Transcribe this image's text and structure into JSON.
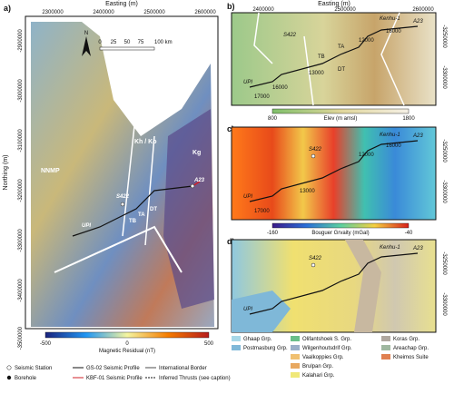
{
  "panel_a": {
    "label": "a)",
    "x_axis_title": "Easting (m)",
    "x_ticks": [
      "2300000",
      "2400000",
      "2500000",
      "2600000"
    ],
    "y_axis_title": "Northing (m)",
    "y_ticks": [
      "-2900000",
      "-3000000",
      "-3100000",
      "-3200000",
      "-3300000",
      "-3400000",
      "-3500000"
    ],
    "north": "N",
    "scale_ticks": [
      "0",
      "25",
      "50",
      "75",
      "100 km"
    ],
    "regions": [
      "NNMP",
      "Kh / Ko",
      "Kg"
    ],
    "stations": [
      "S422",
      "UPI",
      "A23"
    ],
    "thrusts": [
      "TB",
      "TA",
      "DT"
    ],
    "colorbar": {
      "title": "Magnetic Residual (nT)",
      "ticks": [
        "-500",
        "0",
        "500"
      ]
    },
    "legend": [
      "Seismic Station",
      "Borehole",
      "GS-02 Seismic Profile",
      "KBF-01 Seismic Profile",
      "International Border",
      "Inferred Thrusts (see caption)"
    ]
  },
  "panel_b": {
    "label": "b)",
    "x_axis_title": "Easting (m)",
    "x_ticks": [
      "2400000",
      "2500000",
      "2600000"
    ],
    "y_ticks": [
      "-3250000",
      "-3300000"
    ],
    "stations": [
      "S422",
      "Kenhu-1",
      "A23",
      "UPI"
    ],
    "thrusts": [
      "TB",
      "TA",
      "DT"
    ],
    "cmp": [
      "17000",
      "16000",
      "13000",
      "12000",
      "16000"
    ],
    "colorbar": {
      "title": "Elev (m amsl)",
      "ticks": [
        "800",
        "1800"
      ]
    }
  },
  "panel_c": {
    "label": "c)",
    "y_ticks": [
      "-3250000",
      "-3300000"
    ],
    "stations": [
      "S422",
      "Kenhu-1",
      "A23",
      "UPI"
    ],
    "cmp": [
      "17000",
      "13000",
      "12000",
      "16000"
    ],
    "colorbar": {
      "title": "Bouguer Grvaity (mGal)",
      "ticks": [
        "-160",
        "-40"
      ]
    }
  },
  "panel_d": {
    "label": "d)",
    "y_ticks": [
      "-3250000",
      "-3300000"
    ],
    "stations": [
      "S422",
      "Kenhu-1",
      "A23",
      "UPI"
    ],
    "legend": [
      "Ghaap Grp.",
      "Postmasburg Grp.",
      "Olifantshoek S. Grp.",
      "Wilgenhoutsdrif Grp.",
      "Vaalkoppies Grp.",
      "Brulpan Grp.",
      "Kalahari Grp.",
      "Koras Grp.",
      "Areachap Grp.",
      "Kheimos Suite"
    ]
  }
}
